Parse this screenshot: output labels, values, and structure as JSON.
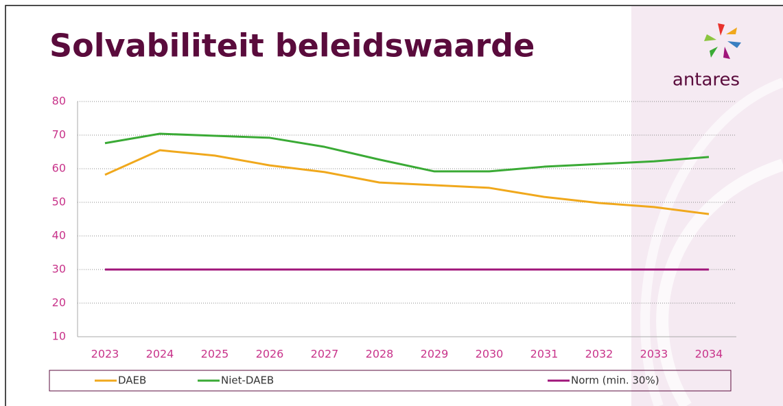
{
  "logo": {
    "text": "antares"
  },
  "chart_data": {
    "type": "line",
    "title": "Solvabiliteit beleidswaarde",
    "categories": [
      "2023",
      "2024",
      "2025",
      "2026",
      "2027",
      "2028",
      "2029",
      "2030",
      "2031",
      "2032",
      "2033",
      "2034"
    ],
    "series": [
      {
        "name": "DAEB",
        "color": "#f0a81c",
        "values": [
          58.2,
          65.5,
          63.9,
          61,
          59,
          55.9,
          55.1,
          54.3,
          51.6,
          49.8,
          48.6,
          46.5
        ]
      },
      {
        "name": "Niet-DAEB",
        "color": "#3aaa35",
        "values": [
          67.6,
          70.4,
          69.8,
          69.2,
          66.5,
          62.7,
          59.2,
          59.2,
          60.6,
          61.4,
          62.2,
          63.5
        ]
      },
      {
        "name": "Norm (min. 30%)",
        "color": "#a0157a",
        "values": [
          30,
          30,
          30,
          30,
          30,
          30,
          30,
          30,
          30,
          30,
          30,
          30
        ]
      }
    ],
    "ylim": [
      10,
      80
    ],
    "yticks": [
      10,
      20,
      30,
      40,
      50,
      60,
      70,
      80
    ],
    "grid": true,
    "legend": "bottom"
  }
}
